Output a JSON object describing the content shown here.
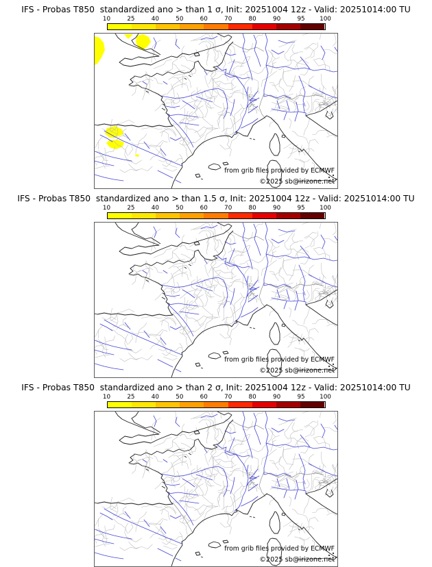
{
  "panels": [
    {
      "title": "IFS - Probas T850  standardized ano > than 1 σ, Init: 20251004 12z - Valid: 20251014:00 TU",
      "threshold_sigma": "1",
      "show_anomalies": true
    },
    {
      "title": "IFS - Probas T850  standardized ano > than 1.5 σ, Init: 20251004 12z - Valid: 20251014:00 TU",
      "threshold_sigma": "1.5",
      "show_anomalies": false
    },
    {
      "title": "IFS - Probas T850  standardized ano > than 2 σ, Init: 20251004 12z - Valid: 20251014:00 TU",
      "threshold_sigma": "2",
      "show_anomalies": false
    }
  ],
  "colorbar": {
    "ticks": [
      "10",
      "25",
      "40",
      "50",
      "60",
      "70",
      "80",
      "90",
      "95",
      "100"
    ],
    "colors": [
      "#ffff00",
      "#ffe800",
      "#ffc400",
      "#ffa000",
      "#ff7c00",
      "#ff2a00",
      "#e60000",
      "#a40000",
      "#640000"
    ],
    "border_color": "#000000"
  },
  "map": {
    "credit_line1": "from grib files provided by ECMWF",
    "credit_line2": "©2025 sb@irizone.net",
    "colors": {
      "background": "#ffffff",
      "frame": "#595959",
      "coast": "#1c1c1c",
      "river": "#4343d9",
      "admin_boundary": "#bababa",
      "country_border": "#8f8f8f",
      "anomaly_fill": "#ffff00"
    }
  }
}
